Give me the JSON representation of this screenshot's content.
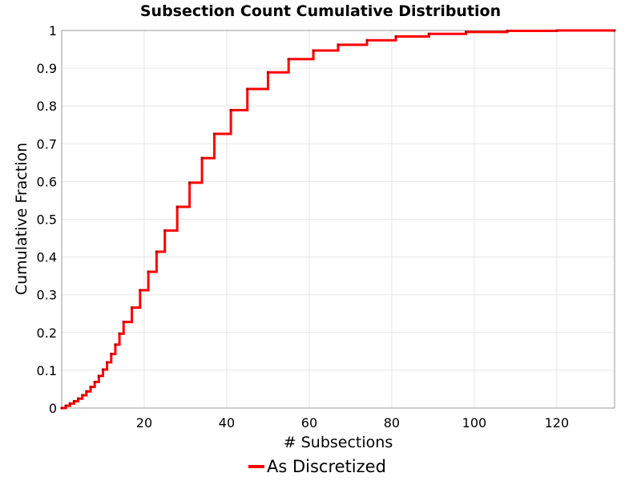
{
  "chart_data": {
    "type": "line",
    "title": "Subsection Count Cumulative Distribution",
    "xlabel": "# Subsections",
    "ylabel": "Cumulative Fraction",
    "xlim": [
      0,
      134
    ],
    "ylim": [
      0,
      1
    ],
    "x_ticks": [
      20,
      40,
      60,
      80,
      100,
      120
    ],
    "y_ticks": [
      0,
      0.1,
      0.2,
      0.3,
      0.4,
      0.5,
      0.6,
      0.7,
      0.8,
      0.9,
      1
    ],
    "grid": true,
    "legend_position": "bottom-center",
    "series": [
      {
        "name": "As Discretized",
        "color": "#ff0000",
        "step": true,
        "points": [
          [
            0,
            0.0
          ],
          [
            1,
            0.006
          ],
          [
            2,
            0.012
          ],
          [
            3,
            0.018
          ],
          [
            4,
            0.025
          ],
          [
            5,
            0.034
          ],
          [
            6,
            0.044
          ],
          [
            7,
            0.056
          ],
          [
            8,
            0.069
          ],
          [
            9,
            0.085
          ],
          [
            10,
            0.102
          ],
          [
            11,
            0.121
          ],
          [
            12,
            0.143
          ],
          [
            13,
            0.168
          ],
          [
            14,
            0.197
          ],
          [
            15,
            0.228
          ],
          [
            17,
            0.266
          ],
          [
            19,
            0.312
          ],
          [
            21,
            0.361
          ],
          [
            23,
            0.414
          ],
          [
            25,
            0.47
          ],
          [
            28,
            0.533
          ],
          [
            31,
            0.597
          ],
          [
            34,
            0.662
          ],
          [
            37,
            0.726
          ],
          [
            41,
            0.789
          ],
          [
            45,
            0.845
          ],
          [
            50,
            0.889
          ],
          [
            55,
            0.924
          ],
          [
            61,
            0.947
          ],
          [
            67,
            0.962
          ],
          [
            74,
            0.974
          ],
          [
            81,
            0.984
          ],
          [
            89,
            0.991
          ],
          [
            98,
            0.996
          ],
          [
            108,
            0.999
          ],
          [
            120,
            1.0
          ],
          [
            134,
            1.0
          ]
        ]
      }
    ]
  }
}
